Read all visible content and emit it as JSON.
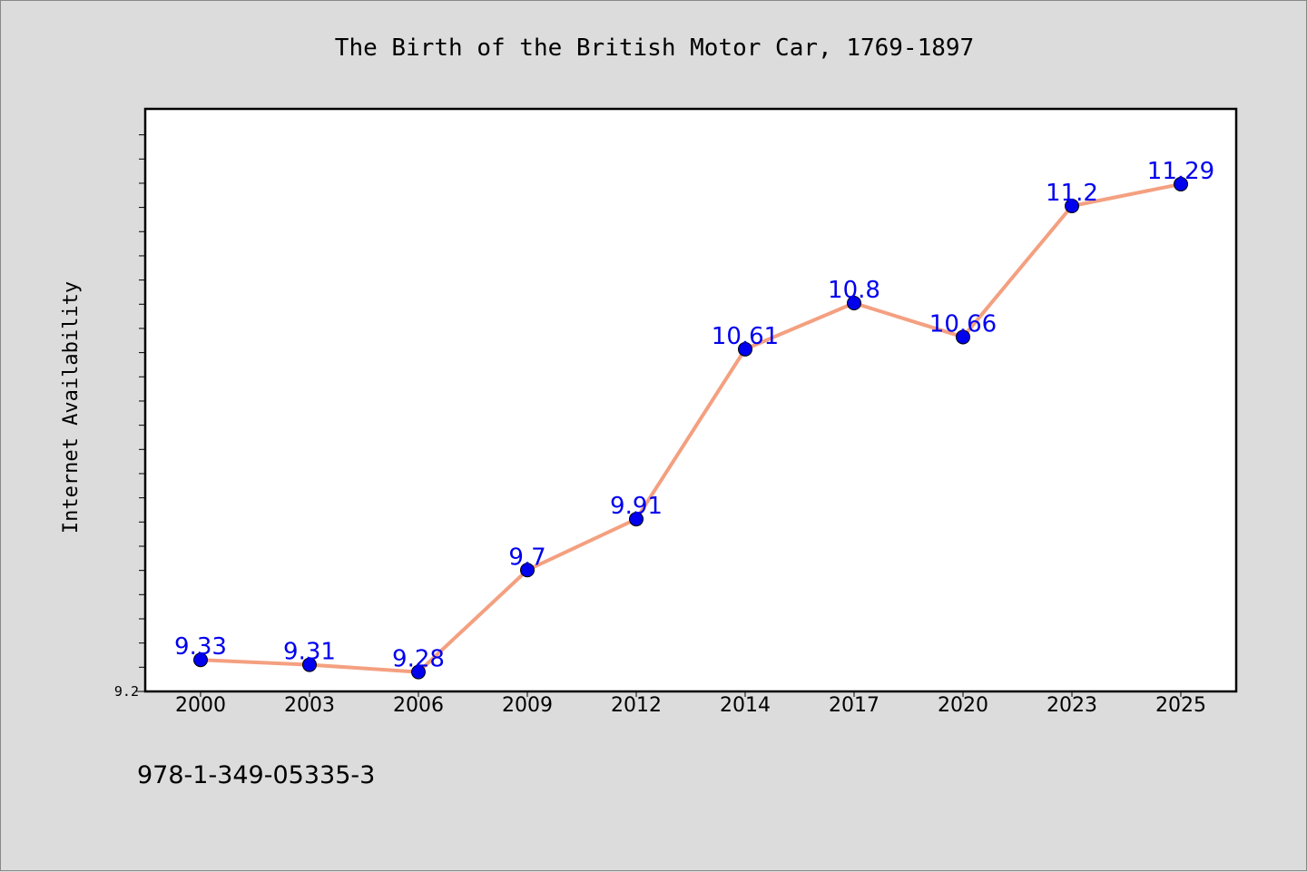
{
  "chart_data": {
    "type": "line",
    "title": "The Birth of the British Motor Car, 1769-1897",
    "xlabel": "",
    "ylabel": "Internet Availability",
    "categories": [
      "2000",
      "2003",
      "2006",
      "2009",
      "2012",
      "2014",
      "2017",
      "2020",
      "2023",
      "2025"
    ],
    "series": [
      {
        "values": [
          9.33,
          9.31,
          9.28,
          9.7,
          9.91,
          10.61,
          10.8,
          10.66,
          11.2,
          11.29
        ],
        "data_labels": [
          "9.33",
          "9.31",
          "9.28",
          "9.7",
          "9.91",
          "10.61",
          "10.8",
          "10.66",
          "11.2",
          "11.29"
        ]
      }
    ],
    "ylim": [
      9.2,
      11.6
    ],
    "yticks_labeled": [
      "9.2"
    ],
    "grid": false,
    "legend": "none",
    "colors": {
      "line": "#f4a080",
      "marker": "#0000ee",
      "data_label": "#0000ee",
      "plot_bg": "#ffffff",
      "page_bg": "#dcdcdc"
    }
  },
  "footer": {
    "isbn": "978-1-349-05335-3"
  }
}
